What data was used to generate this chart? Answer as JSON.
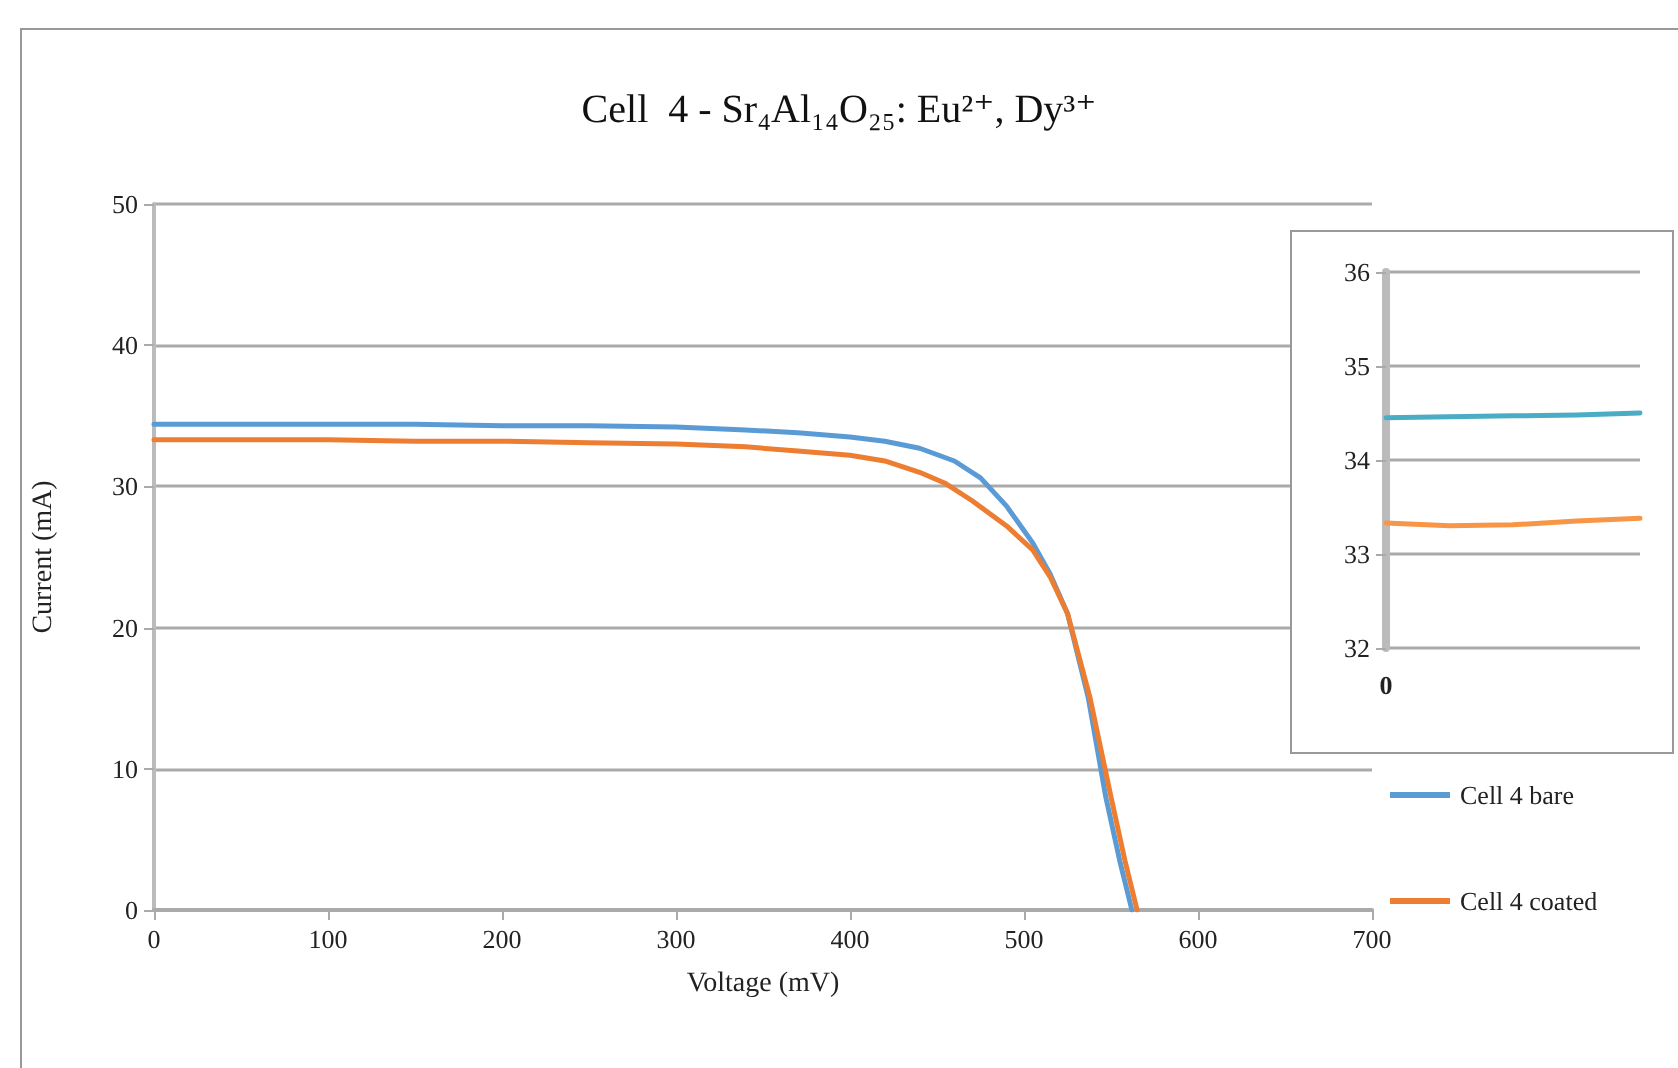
{
  "chart_data": [
    {
      "type": "line",
      "title": "Cell  4 - Sr₄Al₁₄O₂₅: Eu²⁺, Dy³⁺",
      "xlabel": "Voltage (mV)",
      "ylabel": "Current (mA)",
      "xlim": [
        0,
        700
      ],
      "xticks": [
        0,
        100,
        200,
        300,
        400,
        500,
        600,
        700
      ],
      "ylim": [
        0,
        50
      ],
      "yticks": [
        0,
        10,
        20,
        30,
        40,
        50
      ],
      "grid": "y",
      "legend": "right",
      "marker": "none",
      "series": [
        {
          "name": "Cell 4 bare",
          "color": "#5b9bd5",
          "x": [
            0,
            50,
            100,
            150,
            200,
            250,
            300,
            340,
            370,
            400,
            420,
            440,
            460,
            475,
            490,
            505,
            515,
            525,
            537,
            547,
            555,
            562
          ],
          "values": [
            34.4,
            34.4,
            34.4,
            34.4,
            34.3,
            34.3,
            34.2,
            34.0,
            33.8,
            33.5,
            33.2,
            32.7,
            31.8,
            30.6,
            28.6,
            26.0,
            23.8,
            21.0,
            15.0,
            8.0,
            3.5,
            0
          ]
        },
        {
          "name": "Cell 4 coated",
          "color": "#ed7d31",
          "x": [
            0,
            50,
            100,
            150,
            200,
            250,
            300,
            340,
            370,
            400,
            420,
            440,
            455,
            470,
            490,
            505,
            515,
            525,
            538,
            550,
            558,
            565
          ],
          "values": [
            33.3,
            33.3,
            33.3,
            33.2,
            33.2,
            33.1,
            33.0,
            32.8,
            32.5,
            32.2,
            31.8,
            31.0,
            30.2,
            29.0,
            27.2,
            25.5,
            23.6,
            21.0,
            15.0,
            8.0,
            3.5,
            0
          ]
        }
      ]
    },
    {
      "type": "line",
      "categories": [
        "0",
        null,
        null,
        null,
        null
      ],
      "ylim": [
        32,
        36
      ],
      "yticks": [
        32,
        33,
        34,
        35,
        36
      ],
      "grid": "y",
      "marker": "none",
      "series": [
        {
          "color": "#4bacc6",
          "values": [
            34.45,
            34.46,
            34.47,
            34.48,
            34.5
          ]
        },
        {
          "color": "#f79646",
          "values": [
            33.33,
            33.3,
            33.31,
            33.35,
            33.38
          ]
        }
      ]
    }
  ]
}
